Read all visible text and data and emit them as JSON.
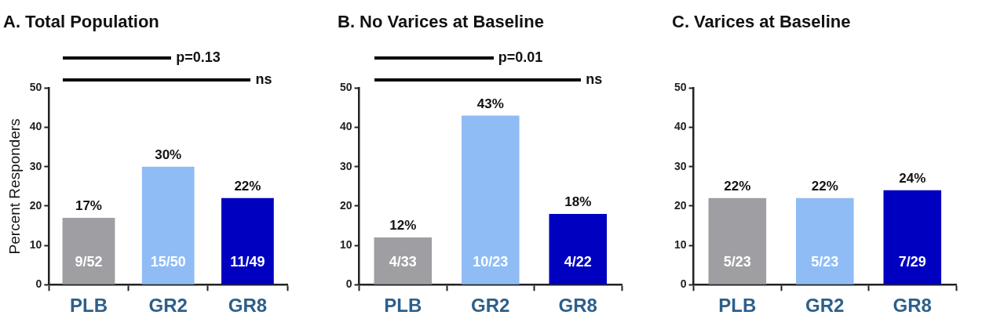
{
  "chart_data": [
    {
      "type": "bar",
      "title": "A. Total Population",
      "ylabel": "Percent Responders",
      "categories": [
        "PLB",
        "GR2",
        "GR8"
      ],
      "values": [
        17,
        30,
        22
      ],
      "colors": [
        "#9e9ea3",
        "#8fbcf5",
        "#0000c0"
      ],
      "value_labels": [
        "17%",
        "30%",
        "22%"
      ],
      "ylim": [
        0,
        50
      ],
      "yticks": [
        0,
        10,
        20,
        30,
        40,
        50
      ],
      "grid": false,
      "legend": false,
      "annotations": [
        "p=0.13",
        "ns",
        "9/52",
        "15/50",
        "11/49"
      ]
    },
    {
      "type": "bar",
      "title": "B. No Varices at Baseline",
      "categories": [
        "PLB",
        "GR2",
        "GR8"
      ],
      "values": [
        12,
        43,
        18
      ],
      "colors": [
        "#9e9ea3",
        "#8fbcf5",
        "#0000c0"
      ],
      "value_labels": [
        "12%",
        "43%",
        "18%"
      ],
      "ylim": [
        0,
        50
      ],
      "yticks": [
        0,
        10,
        20,
        30,
        40,
        50
      ],
      "grid": false,
      "legend": false,
      "annotations": [
        "p=0.01",
        "ns",
        "4/33",
        "10/23",
        "4/22"
      ]
    },
    {
      "type": "bar",
      "title": "C. Varices at Baseline",
      "categories": [
        "PLB",
        "GR2",
        "GR8"
      ],
      "values": [
        22,
        22,
        24
      ],
      "colors": [
        "#9e9ea3",
        "#8fbcf5",
        "#0000c0"
      ],
      "value_labels": [
        "22%",
        "22%",
        "24%"
      ],
      "ylim": [
        0,
        50
      ],
      "yticks": [
        0,
        10,
        20,
        30,
        40,
        50
      ],
      "grid": false,
      "legend": false,
      "annotations": [
        "5/23",
        "5/23",
        "7/29"
      ]
    }
  ]
}
